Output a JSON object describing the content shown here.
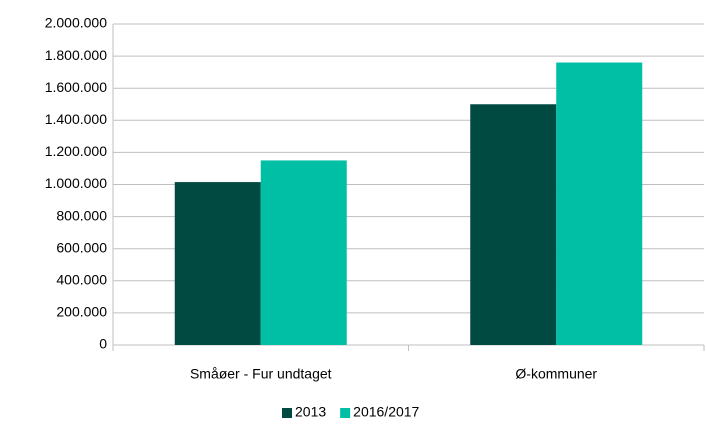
{
  "chart_data": {
    "type": "bar",
    "categories": [
      "Småøer - Fur undtaget",
      "Ø-kommuner"
    ],
    "series": [
      {
        "name": "2013",
        "color": "#004a42",
        "values": [
          1015000,
          1500000
        ]
      },
      {
        "name": "2016/2017",
        "color": "#00bfa5",
        "values": [
          1150000,
          1760000
        ]
      }
    ],
    "ylim": [
      0,
      2000000
    ],
    "yticks": [
      0,
      {
        "value": 200000,
        "label": "200.000"
      },
      {
        "value": 400000,
        "label": "400.000"
      },
      {
        "value": 600000,
        "label": "600.000"
      },
      {
        "value": 800000,
        "label": "800.000"
      },
      {
        "value": 1000000,
        "label": "1.000.000"
      },
      {
        "value": 1200000,
        "label": "1.200.000"
      },
      {
        "value": 1400000,
        "label": "1.400.000"
      },
      {
        "value": 1600000,
        "label": "1.600.000"
      },
      {
        "value": 1800000,
        "label": "1.800.000"
      },
      {
        "value": 2000000,
        "label": "2.000.000"
      }
    ],
    "grid": true,
    "legend": "bottom"
  }
}
